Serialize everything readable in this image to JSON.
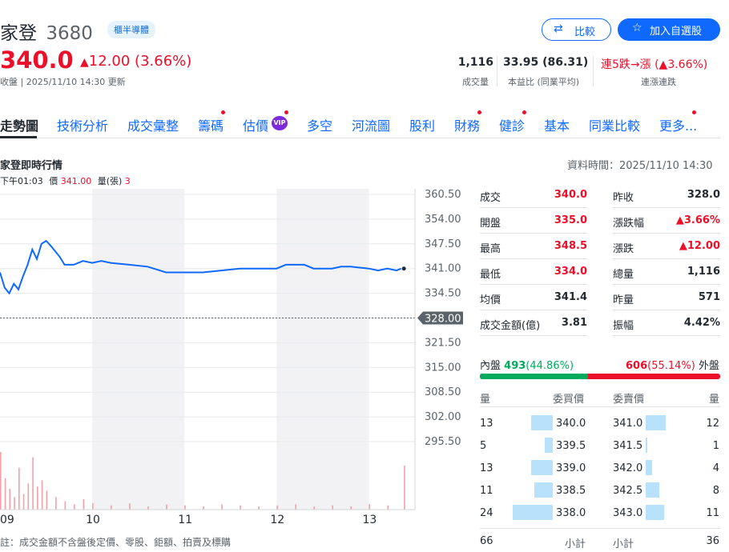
{
  "header": {
    "name": "家登",
    "code": "3680",
    "badge": "櫃半導體",
    "price": "340.0",
    "change": "12.00",
    "change_pct": "(3.66%)",
    "status": "收盤 | 2025/11/10 14:30 更新",
    "compare_label": "比較",
    "watchlist_label": "加入自選股"
  },
  "summary": {
    "volume_value": "1,116",
    "volume_label": "成交量",
    "pe_value": "33.95 (86.31)",
    "pe_label": "本益比 (同業平均)",
    "streak_value": "連5跌→漲 (▲3.66%)",
    "streak_label": "連漲連跌"
  },
  "nav": {
    "items": [
      "走勢圖",
      "技術分析",
      "成交彙整",
      "籌碼",
      "估價",
      "多空",
      "河流圖",
      "股利",
      "財務",
      "健診",
      "基本",
      "同業比較",
      "更多..."
    ],
    "vip": "VIP"
  },
  "chart_header": {
    "title": "家登即時行情",
    "time_label": "下午01:03",
    "price_label": "價",
    "price_value": "341.00",
    "vol_label": "量(張)",
    "vol_value": "3",
    "data_time": "資料時間：2025/11/10 14:30",
    "footnote": "註：成交金額不含盤後定價、零股、鉅額、拍賣及標購"
  },
  "chart_data": {
    "type": "line",
    "x_ticks": [
      "09",
      "10",
      "11",
      "12",
      "13"
    ],
    "y_ticks": [
      "360.50",
      "354.00",
      "347.50",
      "341.00",
      "334.50",
      "328.00",
      "321.50",
      "315.00",
      "308.50",
      "302.00",
      "295.50"
    ],
    "ylim": [
      295.5,
      360.5
    ],
    "prev_close": 328.0,
    "prev_close_label": "328.00",
    "price_series": [
      {
        "t": 9.0,
        "v": 340.0
      },
      {
        "t": 9.05,
        "v": 336.0
      },
      {
        "t": 9.1,
        "v": 334.5
      },
      {
        "t": 9.15,
        "v": 337.0
      },
      {
        "t": 9.2,
        "v": 335.5
      },
      {
        "t": 9.25,
        "v": 339.0
      },
      {
        "t": 9.3,
        "v": 342.0
      },
      {
        "t": 9.35,
        "v": 346.0
      },
      {
        "t": 9.4,
        "v": 343.5
      },
      {
        "t": 9.45,
        "v": 347.5
      },
      {
        "t": 9.5,
        "v": 348.3
      },
      {
        "t": 9.55,
        "v": 347.0
      },
      {
        "t": 9.6,
        "v": 345.5
      },
      {
        "t": 9.65,
        "v": 344.0
      },
      {
        "t": 9.7,
        "v": 342.0
      },
      {
        "t": 9.8,
        "v": 342.0
      },
      {
        "t": 9.9,
        "v": 343.0
      },
      {
        "t": 10.0,
        "v": 342.5
      },
      {
        "t": 10.1,
        "v": 343.0
      },
      {
        "t": 10.2,
        "v": 342.5
      },
      {
        "t": 10.4,
        "v": 342.0
      },
      {
        "t": 10.6,
        "v": 341.5
      },
      {
        "t": 10.8,
        "v": 340.0
      },
      {
        "t": 11.0,
        "v": 340.0
      },
      {
        "t": 11.2,
        "v": 340.0
      },
      {
        "t": 11.4,
        "v": 340.5
      },
      {
        "t": 11.6,
        "v": 341.0
      },
      {
        "t": 11.8,
        "v": 341.0
      },
      {
        "t": 12.0,
        "v": 341.0
      },
      {
        "t": 12.1,
        "v": 342.0
      },
      {
        "t": 12.3,
        "v": 342.0
      },
      {
        "t": 12.4,
        "v": 341.0
      },
      {
        "t": 12.6,
        "v": 341.0
      },
      {
        "t": 12.7,
        "v": 341.5
      },
      {
        "t": 12.8,
        "v": 341.5
      },
      {
        "t": 13.0,
        "v": 341.0
      },
      {
        "t": 13.1,
        "v": 340.5
      },
      {
        "t": 13.2,
        "v": 341.0
      },
      {
        "t": 13.3,
        "v": 340.5
      },
      {
        "t": 13.35,
        "v": 341.0
      }
    ],
    "last_point": {
      "t": 13.38,
      "v": 341.0
    },
    "volume_bars": [
      {
        "t": 9.0,
        "v": 55
      },
      {
        "t": 9.05,
        "v": 30
      },
      {
        "t": 9.1,
        "v": 20
      },
      {
        "t": 9.15,
        "v": 12
      },
      {
        "t": 9.2,
        "v": 40
      },
      {
        "t": 9.25,
        "v": 15
      },
      {
        "t": 9.3,
        "v": 25
      },
      {
        "t": 9.35,
        "v": 50
      },
      {
        "t": 9.4,
        "v": 22
      },
      {
        "t": 9.45,
        "v": 28
      },
      {
        "t": 9.5,
        "v": 18
      },
      {
        "t": 9.6,
        "v": 12
      },
      {
        "t": 9.7,
        "v": 8
      },
      {
        "t": 9.8,
        "v": 5
      },
      {
        "t": 9.9,
        "v": 10
      },
      {
        "t": 10.0,
        "v": 6
      },
      {
        "t": 10.2,
        "v": 4
      },
      {
        "t": 10.4,
        "v": 6
      },
      {
        "t": 10.6,
        "v": 3
      },
      {
        "t": 10.8,
        "v": 5
      },
      {
        "t": 11.0,
        "v": 4
      },
      {
        "t": 11.2,
        "v": 3
      },
      {
        "t": 11.4,
        "v": 5
      },
      {
        "t": 11.6,
        "v": 4
      },
      {
        "t": 11.8,
        "v": 3
      },
      {
        "t": 12.0,
        "v": 4
      },
      {
        "t": 12.2,
        "v": 5
      },
      {
        "t": 12.4,
        "v": 3
      },
      {
        "t": 12.6,
        "v": 4
      },
      {
        "t": 12.8,
        "v": 3
      },
      {
        "t": 13.0,
        "v": 5
      },
      {
        "t": 13.2,
        "v": 4
      },
      {
        "t": 13.38,
        "v": 42
      }
    ],
    "colors": {
      "line": "#0f69ff",
      "volume": "#f2a0a8",
      "prev_close": "#5b636a"
    }
  },
  "stats": {
    "left": [
      {
        "label": "成交",
        "value": "340.0",
        "tone": "up"
      },
      {
        "label": "開盤",
        "value": "335.0",
        "tone": "up"
      },
      {
        "label": "最高",
        "value": "348.5",
        "tone": "up"
      },
      {
        "label": "最低",
        "value": "334.0",
        "tone": "up"
      },
      {
        "label": "均價",
        "value": "341.4",
        "tone": "plain"
      },
      {
        "label": "成交金額(億)",
        "value": "3.81",
        "tone": "plain"
      }
    ],
    "right": [
      {
        "label": "昨收",
        "value": "328.0",
        "tone": "plain"
      },
      {
        "label": "漲跌幅",
        "value": "▲3.66%",
        "tone": "up"
      },
      {
        "label": "漲跌",
        "value": "▲12.00",
        "tone": "up"
      },
      {
        "label": "總量",
        "value": "1,116",
        "tone": "plain"
      },
      {
        "label": "昨量",
        "value": "571",
        "tone": "plain"
      },
      {
        "label": "振幅",
        "value": "4.42%",
        "tone": "plain"
      }
    ]
  },
  "order_book": {
    "inner_label": "內盤",
    "inner_value": "493",
    "inner_pct": "(44.86%)",
    "outer_label": "外盤",
    "outer_value": "606",
    "outer_pct": "(55.14%)",
    "inner_ratio": 0.4486,
    "headers": {
      "bid_qty": "量",
      "bid_price": "委買價",
      "ask_price": "委賣價",
      "ask_qty": "量"
    },
    "rows": [
      {
        "bid_qty": "13",
        "bid_price": "340.0",
        "ask_price": "341.0",
        "ask_qty": "12",
        "bid_n": 13,
        "ask_n": 12
      },
      {
        "bid_qty": "5",
        "bid_price": "339.5",
        "ask_price": "341.5",
        "ask_qty": "1",
        "bid_n": 5,
        "ask_n": 1
      },
      {
        "bid_qty": "13",
        "bid_price": "339.0",
        "ask_price": "342.0",
        "ask_qty": "4",
        "bid_n": 13,
        "ask_n": 4
      },
      {
        "bid_qty": "11",
        "bid_price": "338.5",
        "ask_price": "342.5",
        "ask_qty": "8",
        "bid_n": 11,
        "ask_n": 8
      },
      {
        "bid_qty": "24",
        "bid_price": "338.0",
        "ask_price": "343.0",
        "ask_qty": "11",
        "bid_n": 24,
        "ask_n": 11
      }
    ],
    "bid_total": "66",
    "ask_total": "36",
    "subtotal_label": "小計"
  }
}
